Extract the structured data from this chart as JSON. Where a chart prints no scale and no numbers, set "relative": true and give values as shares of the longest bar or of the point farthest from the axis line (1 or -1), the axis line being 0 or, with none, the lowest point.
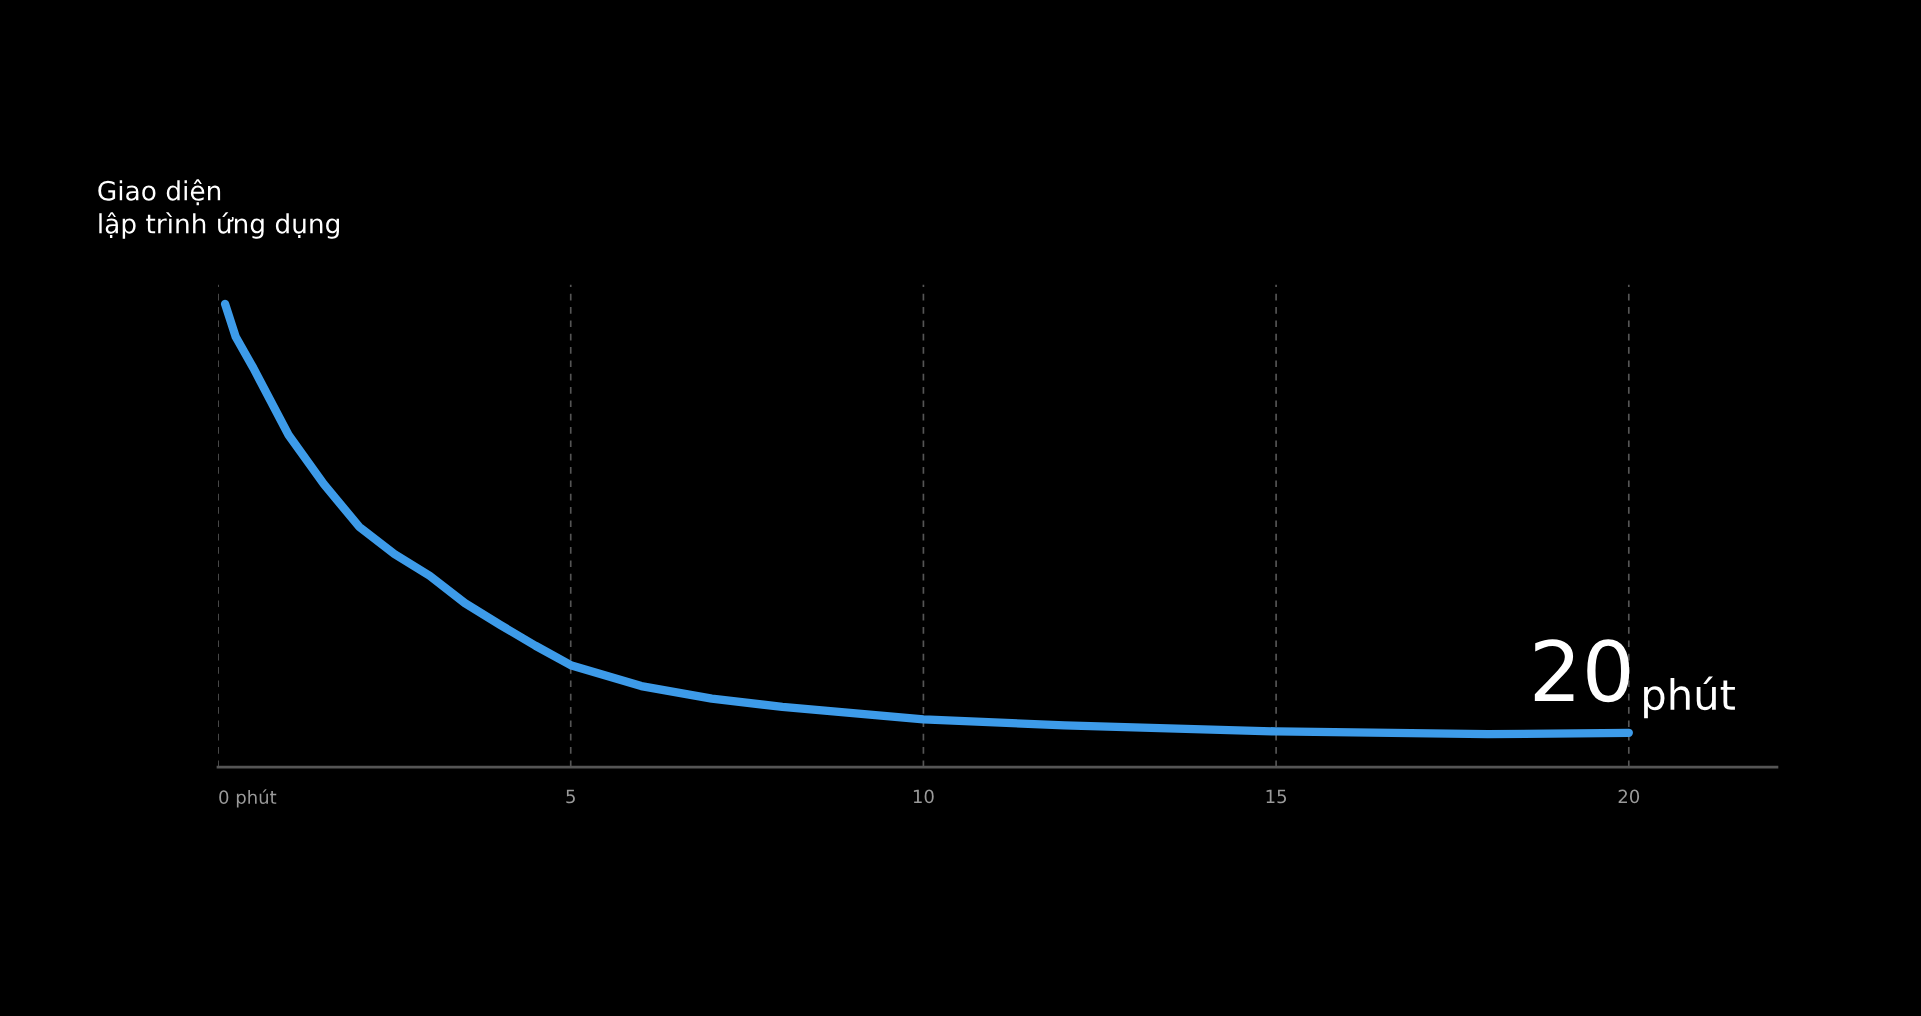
{
  "chart_data": {
    "type": "line",
    "title": "Giao diện\nlập trình ứng dụng",
    "relative": true,
    "x": [
      0.1,
      0.25,
      0.5,
      1,
      1.5,
      2,
      2.5,
      3,
      3.5,
      4,
      4.5,
      5,
      6,
      7,
      8,
      10,
      12,
      15,
      18,
      20
    ],
    "series": [
      {
        "color": "#3d9be9",
        "values": [
          1.0,
          0.929,
          0.862,
          0.717,
          0.611,
          0.519,
          0.46,
          0.413,
          0.354,
          0.307,
          0.262,
          0.22,
          0.175,
          0.148,
          0.13,
          0.103,
          0.09,
          0.077,
          0.071,
          0.074
        ]
      }
    ],
    "xlim": [
      0,
      22.1
    ],
    "xticks": [
      {
        "value": 0,
        "label": "0 phút"
      },
      5,
      10,
      15,
      20
    ],
    "tick_labels": "x",
    "grid": "x",
    "line_style": "solid",
    "marker": "none",
    "annotations": [
      "20",
      "phút"
    ]
  }
}
